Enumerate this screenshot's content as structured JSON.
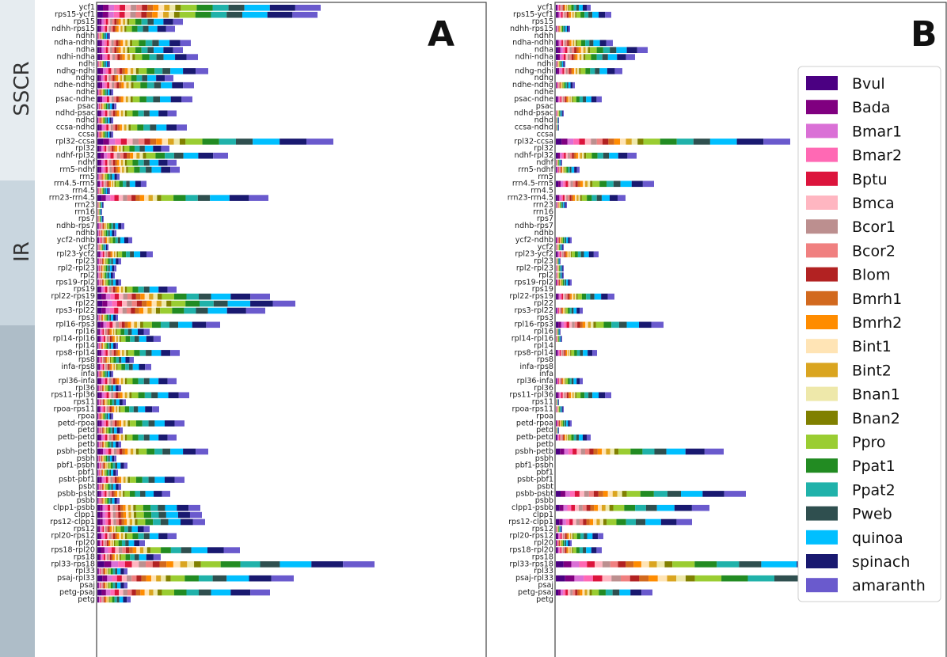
{
  "figure": {
    "regions": [
      "SSCR",
      "IR"
    ],
    "panels": [
      "A",
      "B"
    ]
  },
  "colors": {
    "Bvul": "#4b0082",
    "Bada": "#800080",
    "Bmar1": "#da70d6",
    "Bmar2": "#ff69b4",
    "Bptu": "#dc143c",
    "Bmca": "#ffb6c1",
    "Bcor1": "#bc8f8f",
    "Bcor2": "#f08080",
    "Blom": "#b22222",
    "Bmrh1": "#d2691e",
    "Bmrh2": "#ff8c00",
    "Bint1": "#ffe4b5",
    "Bint2": "#daa520",
    "Bnan1": "#eee8aa",
    "Bnan2": "#808000",
    "Ppro": "#9acd32",
    "Ppat1": "#228b22",
    "Ppat2": "#20b2aa",
    "Pweb": "#2f4f4f",
    "quinoa": "#00bfff",
    "spinach": "#191970",
    "amaranth": "#6a5acd"
  },
  "chart_data": [
    {
      "type": "bar",
      "panel": "A",
      "orientation": "horizontal",
      "stacked": true,
      "categories": [
        "ycf1",
        "rps15-ycf1",
        "rps15",
        "ndhh-rps15",
        "ndhh",
        "ndha-ndhh",
        "ndha",
        "ndhi-ndha",
        "ndhi",
        "ndhg-ndhi",
        "ndhg",
        "ndhe-ndhg",
        "ndhe",
        "psac-ndhe",
        "psac",
        "ndhd-psac",
        "ndhd",
        "ccsa-ndhd",
        "ccsa",
        "rpl32-ccsa",
        "rpl32",
        "ndhf-rpl32",
        "ndhf",
        "rrn5-ndhf",
        "rrn5",
        "rrn4.5-rrn5",
        "rrn4.5",
        "rrn23-rrn4.5",
        "rrn23",
        "rrn16",
        "rps7",
        "ndhb-rps7",
        "ndhb",
        "ycf2-ndhb",
        "ycf2",
        "rpl23-ycf2",
        "rpl23",
        "rpl2-rpl23",
        "rpl2",
        "rps19-rpl2",
        "rps19",
        "rpl22-rps19",
        "rpl22",
        "rps3-rpl22",
        "rps3",
        "rpl16-rps3",
        "rpl16",
        "rpl14-rpl16",
        "rpl14",
        "rps8-rpl14",
        "rps8",
        "infa-rps8",
        "infa",
        "rpl36-infa",
        "rpl36",
        "rps11-rpl36",
        "rps11",
        "rpoa-rps11",
        "rpoa",
        "petd-rpoa",
        "petd",
        "petb-petd",
        "petb",
        "psbh-petb",
        "psbh",
        "pbf1-psbh",
        "pbf1",
        "psbt-pbf1",
        "psbt",
        "psbb-psbt",
        "psbb",
        "clpp1-psbb",
        "clpp1",
        "rps12-clpp1",
        "rps12",
        "rpl20-rps12",
        "rpl20",
        "rps18-rpl20",
        "rps18",
        "rpl33-rps18",
        "rpl33",
        "psaj-rpl33",
        "psaj",
        "petg-psaj",
        "petg"
      ],
      "series_order": [
        "Bvul",
        "Bada",
        "Bmar1",
        "Bmar2",
        "Bptu",
        "Bmca",
        "Bcor1",
        "Bcor2",
        "Blom",
        "Bmrh1",
        "Bmrh2",
        "Bint1",
        "Bint2",
        "Bnan1",
        "Bnan2",
        "Ppro",
        "Ppat1",
        "Ppat2",
        "Pweb",
        "quinoa",
        "spinach",
        "amaranth"
      ],
      "totals": [
        282,
        278,
        108,
        98,
        16,
        118,
        108,
        127,
        16,
        140,
        96,
        122,
        20,
        120,
        24,
        100,
        20,
        113,
        20,
        298,
        91,
        165,
        100,
        104,
        28,
        62,
        16,
        216,
        8,
        6,
        8,
        34,
        24,
        44,
        14,
        70,
        30,
        24,
        22,
        30,
        100,
        218,
        250,
        212,
        26,
        155,
        66,
        80,
        26,
        104,
        46,
        68,
        20,
        100,
        30,
        116,
        36,
        78,
        20,
        110,
        32,
        100,
        30,
        140,
        24,
        38,
        26,
        110,
        30,
        92,
        28,
        130,
        132,
        136,
        66,
        100,
        60,
        180,
        80,
        350,
        38,
        248,
        38,
        218,
        42
      ]
    },
    {
      "type": "bar",
      "panel": "B",
      "orientation": "horizontal",
      "stacked": true,
      "categories": [
        "ycf1",
        "rps15-ycf1",
        "rps15",
        "ndhh-rps15",
        "ndhh",
        "ndha-ndhh",
        "ndha",
        "ndhi-ndha",
        "ndhi",
        "ndhg-ndhi",
        "ndhg",
        "ndhe-ndhg",
        "ndhe",
        "psac-ndhe",
        "psac",
        "ndhd-psac",
        "ndhd",
        "ccsa-ndhd",
        "ccsa",
        "rpl32-ccsa",
        "rpl32",
        "ndhf-rpl32",
        "ndhf",
        "rrn5-ndhf",
        "rrn5",
        "rrn4.5-rrn5",
        "rrn4.5",
        "rrn23-rrn4.5",
        "rrn23",
        "rrn16",
        "rps7",
        "ndhb-rps7",
        "ndhb",
        "ycf2-ndhb",
        "ycf2",
        "rpl23-ycf2",
        "rpl23",
        "rpl2-rpl23",
        "rpl2",
        "rps19-rpl2",
        "rps19",
        "rpl22-rps19",
        "rpl22",
        "rps3-rpl22",
        "rps3",
        "rpl16-rps3",
        "rpl16",
        "rpl14-rpl16",
        "rpl14",
        "rps8-rpl14",
        "rps8",
        "infa-rps8",
        "infa",
        "rpl36-infa",
        "rpl36",
        "rps11-rpl36",
        "rps11",
        "rpoa-rps11",
        "rpoa",
        "petd-rpoa",
        "petd",
        "petb-petd",
        "petb",
        "psbh-petb",
        "psbh",
        "pbf1-psbh",
        "pbf1",
        "psbt-pbf1",
        "psbt",
        "psbb-psbt",
        "psbb",
        "clpp1-psbb",
        "clpp1",
        "rps12-clpp1",
        "rps12",
        "rpl20-rps12",
        "rpl20",
        "rps18-rpl20",
        "rps18",
        "rpl33-rps18",
        "rpl33",
        "psaj-rpl33",
        "psaj",
        "petg-psaj",
        "petg"
      ],
      "series_order": [
        "Bvul",
        "Bada",
        "Bmar1",
        "Bmar2",
        "Bptu",
        "Bmca",
        "Bcor1",
        "Bcor2",
        "Blom",
        "Bmrh1",
        "Bmrh2",
        "Bint1",
        "Bint2",
        "Bnan1",
        "Bnan2",
        "Ppro",
        "Ppat1",
        "Ppat2",
        "Pweb",
        "quinoa",
        "spinach",
        "amaranth"
      ],
      "totals": [
        44,
        70,
        0,
        18,
        0,
        72,
        116,
        100,
        12,
        84,
        0,
        24,
        0,
        58,
        0,
        10,
        4,
        4,
        0,
        296,
        0,
        102,
        8,
        30,
        0,
        124,
        0,
        88,
        14,
        0,
        0,
        0,
        0,
        20,
        10,
        54,
        6,
        10,
        10,
        20,
        0,
        74,
        0,
        34,
        0,
        136,
        6,
        8,
        0,
        52,
        0,
        0,
        0,
        34,
        0,
        70,
        4,
        10,
        0,
        20,
        4,
        44,
        0,
        212,
        0,
        0,
        0,
        0,
        0,
        240,
        0,
        194,
        0,
        172,
        8,
        60,
        20,
        58,
        0,
        394,
        0,
        470,
        0,
        122,
        0
      ]
    }
  ]
}
